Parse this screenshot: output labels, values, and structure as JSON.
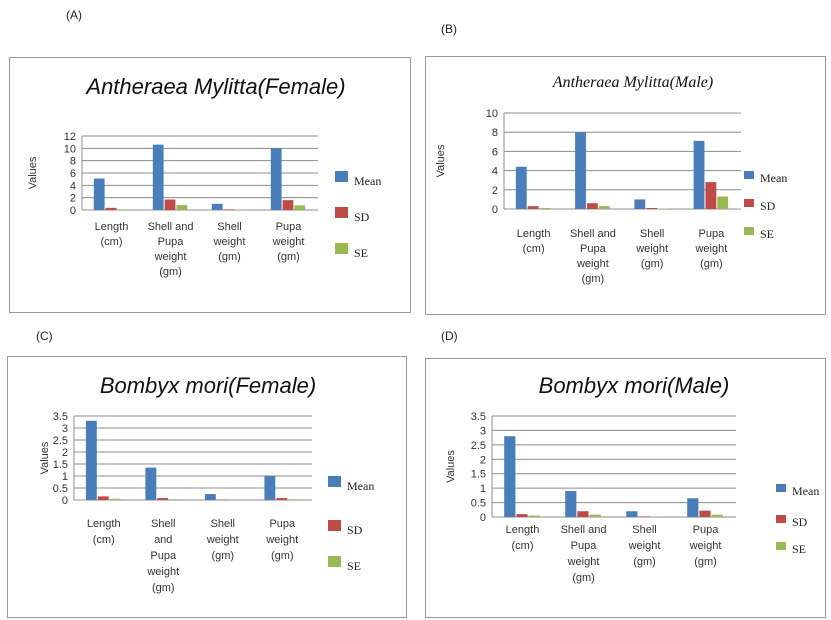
{
  "panels": [
    {
      "letter": "(A)"
    },
    {
      "letter": "(B)"
    },
    {
      "letter": "(C)"
    },
    {
      "letter": "(D)"
    }
  ],
  "colors": {
    "Mean": "#4a7ebb",
    "SD": "#be4b48",
    "SE": "#98b954",
    "grid": "#8c8c8c"
  },
  "chart_data": [
    {
      "type": "bar",
      "title": "Antheraea Mylitta(Female)",
      "ylabel": "Values",
      "ylim": [
        0,
        12
      ],
      "yticks": [
        "0",
        "2",
        "4",
        "6",
        "8",
        "10",
        "12"
      ],
      "categories": [
        [
          "Length",
          "(cm)"
        ],
        [
          "Shell and",
          "Pupa",
          "weight",
          "(gm)"
        ],
        [
          "Shell",
          "weight",
          "(gm)"
        ],
        [
          "Pupa",
          "weight",
          "(gm)"
        ]
      ],
      "series": [
        {
          "name": "Mean",
          "values": [
            5.1,
            10.6,
            1.0,
            10.0
          ]
        },
        {
          "name": "SD",
          "values": [
            0.35,
            1.7,
            0.1,
            1.6
          ]
        },
        {
          "name": "SE",
          "values": [
            0.1,
            0.8,
            0.05,
            0.75
          ]
        }
      ]
    },
    {
      "type": "bar",
      "title": "Antheraea Mylitta(Male)",
      "ylabel": "Values",
      "ylim": [
        0,
        10
      ],
      "yticks": [
        "0",
        "2",
        "4",
        "6",
        "8",
        "10"
      ],
      "categories": [
        [
          "Length",
          "(cm)"
        ],
        [
          "Shell and",
          "Pupa",
          "weight",
          "(gm)"
        ],
        [
          "Shell",
          "weight",
          "(gm)"
        ],
        [
          "Pupa",
          "weight",
          "(gm)"
        ]
      ],
      "series": [
        {
          "name": "Mean",
          "values": [
            4.4,
            8.0,
            1.0,
            7.1
          ]
        },
        {
          "name": "SD",
          "values": [
            0.3,
            0.6,
            0.1,
            2.8
          ]
        },
        {
          "name": "SE",
          "values": [
            0.1,
            0.3,
            0.05,
            1.3
          ]
        }
      ]
    },
    {
      "type": "bar",
      "title": "Bombyx mori(Female)",
      "ylabel": "Values",
      "ylim": [
        0,
        3.5
      ],
      "yticks": [
        "0",
        "0.5",
        "1",
        "1.5",
        "2",
        "2.5",
        "3",
        "3.5"
      ],
      "categories": [
        [
          "Length",
          "(cm)"
        ],
        [
          "Shell",
          "and",
          "Pupa",
          "weight",
          "(gm)"
        ],
        [
          "Shell",
          "weight",
          "(gm)"
        ],
        [
          "Pupa",
          "weight",
          "(gm)"
        ]
      ],
      "series": [
        {
          "name": "Mean",
          "values": [
            3.3,
            1.35,
            0.25,
            1.0
          ]
        },
        {
          "name": "SD",
          "values": [
            0.15,
            0.08,
            0.02,
            0.08
          ]
        },
        {
          "name": "SE",
          "values": [
            0.05,
            0.03,
            0.01,
            0.03
          ]
        }
      ]
    },
    {
      "type": "bar",
      "title": "Bombyx mori(Male)",
      "ylabel": "Values",
      "ylim": [
        0,
        3.5
      ],
      "yticks": [
        "0",
        "0.5",
        "1",
        "1.5",
        "2",
        "2.5",
        "3",
        "3.5"
      ],
      "categories": [
        [
          "Length",
          "(cm)"
        ],
        [
          "Shell and",
          "Pupa",
          "weight",
          "(gm)"
        ],
        [
          "Shell",
          "weight",
          "(gm)"
        ],
        [
          "Pupa",
          "weight",
          "(gm)"
        ]
      ],
      "series": [
        {
          "name": "Mean",
          "values": [
            2.8,
            0.9,
            0.2,
            0.65
          ]
        },
        {
          "name": "SD",
          "values": [
            0.1,
            0.2,
            0.02,
            0.22
          ]
        },
        {
          "name": "SE",
          "values": [
            0.05,
            0.08,
            0.01,
            0.08
          ]
        }
      ]
    }
  ]
}
